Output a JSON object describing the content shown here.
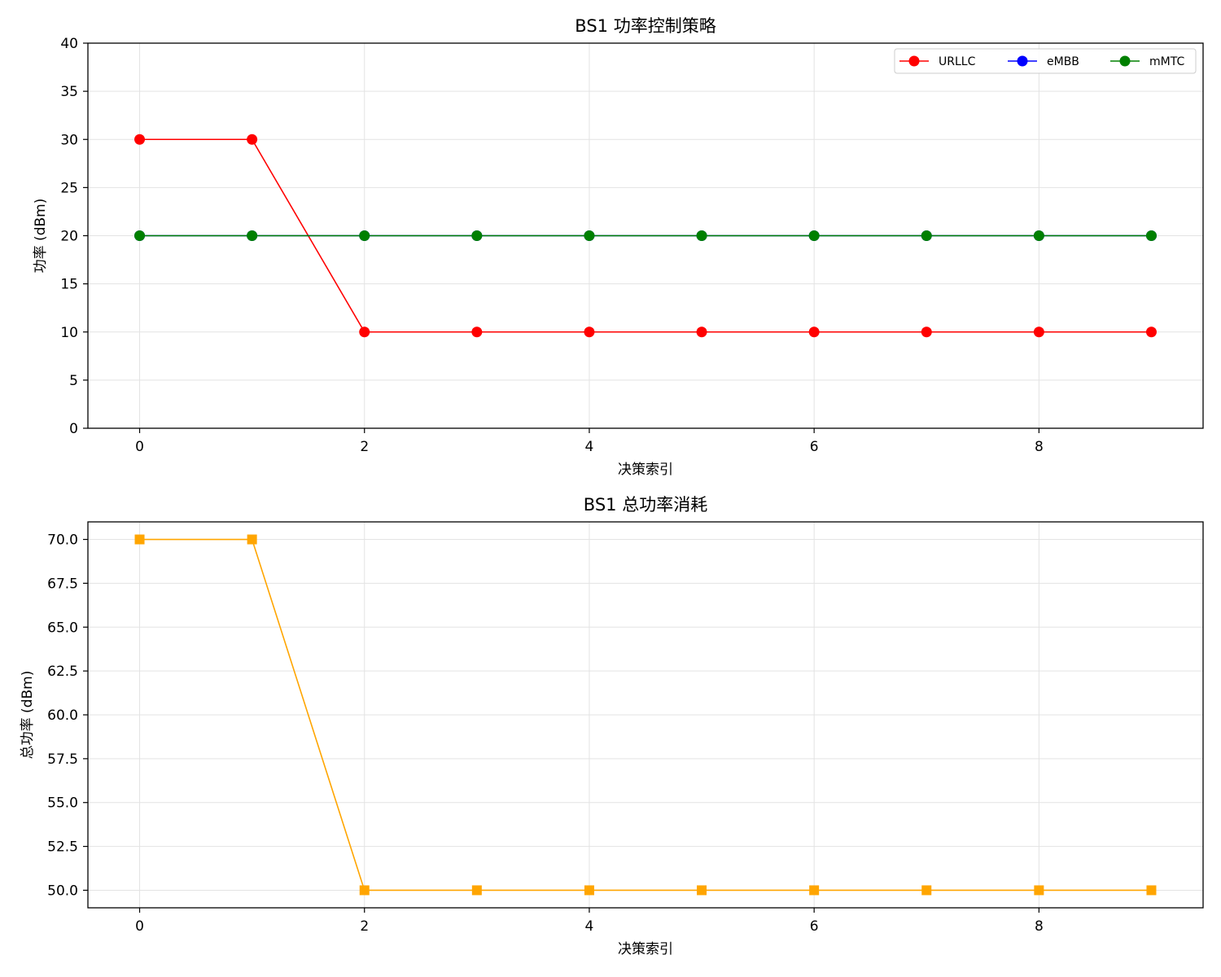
{
  "chart_data": [
    {
      "type": "line",
      "title": "BS1 功率控制策略",
      "xlabel": "决策索引",
      "ylabel": "功率 (dBm)",
      "x": [
        0,
        1,
        2,
        3,
        4,
        5,
        6,
        7,
        8,
        9
      ],
      "xlim": [
        -0.46,
        9.46
      ],
      "ylim": [
        0,
        40
      ],
      "xticks": [
        0,
        2,
        4,
        6,
        8
      ],
      "yticks": [
        0,
        5,
        10,
        15,
        20,
        25,
        30,
        35,
        40
      ],
      "grid": true,
      "legend_position": "top-right",
      "series": [
        {
          "name": "URLLC",
          "color": "#ff0000",
          "marker": "circle",
          "values": [
            30,
            30,
            10,
            10,
            10,
            10,
            10,
            10,
            10,
            10
          ]
        },
        {
          "name": "eMBB",
          "color": "#0000ff",
          "marker": "circle",
          "values": [
            20,
            20,
            20,
            20,
            20,
            20,
            20,
            20,
            20,
            20
          ]
        },
        {
          "name": "mMTC",
          "color": "#008000",
          "marker": "circle",
          "values": [
            20,
            20,
            20,
            20,
            20,
            20,
            20,
            20,
            20,
            20
          ]
        }
      ]
    },
    {
      "type": "line",
      "title": "BS1 总功率消耗",
      "xlabel": "决策索引",
      "ylabel": "总功率 (dBm)",
      "x": [
        0,
        1,
        2,
        3,
        4,
        5,
        6,
        7,
        8,
        9
      ],
      "xlim": [
        -0.46,
        9.46
      ],
      "ylim": [
        49.0,
        71.0
      ],
      "xticks": [
        0,
        2,
        4,
        6,
        8
      ],
      "yticks": [
        50.0,
        52.5,
        55.0,
        57.5,
        60.0,
        62.5,
        65.0,
        67.5,
        70.0
      ],
      "ytick_decimals": 1,
      "grid": true,
      "series": [
        {
          "color": "#ffa500",
          "marker": "square",
          "values": [
            70,
            70,
            50,
            50,
            50,
            50,
            50,
            50,
            50,
            50
          ]
        }
      ]
    }
  ]
}
